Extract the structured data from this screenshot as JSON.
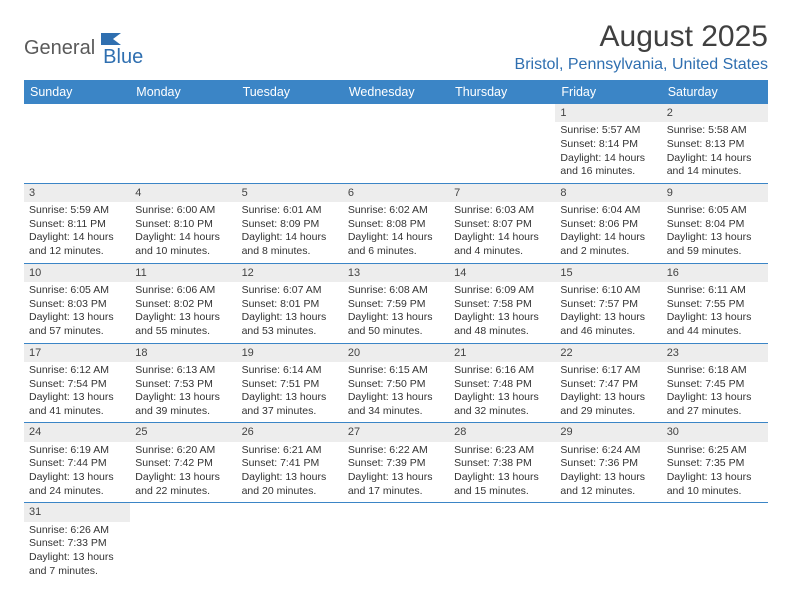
{
  "logo": {
    "part1": "General",
    "part2": "Blue"
  },
  "title": "August 2025",
  "location": "Bristol, Pennsylvania, United States",
  "colors": {
    "header_bg": "#3b85c6",
    "header_text": "#ffffff",
    "daynum_bg": "#ededed",
    "accent": "#2f6fb0",
    "text": "#333333"
  },
  "day_headers": [
    "Sunday",
    "Monday",
    "Tuesday",
    "Wednesday",
    "Thursday",
    "Friday",
    "Saturday"
  ],
  "weeks": [
    [
      null,
      null,
      null,
      null,
      null,
      {
        "n": "1",
        "sr": "5:57 AM",
        "ss": "8:14 PM",
        "dl": "14 hours and 16 minutes."
      },
      {
        "n": "2",
        "sr": "5:58 AM",
        "ss": "8:13 PM",
        "dl": "14 hours and 14 minutes."
      }
    ],
    [
      {
        "n": "3",
        "sr": "5:59 AM",
        "ss": "8:11 PM",
        "dl": "14 hours and 12 minutes."
      },
      {
        "n": "4",
        "sr": "6:00 AM",
        "ss": "8:10 PM",
        "dl": "14 hours and 10 minutes."
      },
      {
        "n": "5",
        "sr": "6:01 AM",
        "ss": "8:09 PM",
        "dl": "14 hours and 8 minutes."
      },
      {
        "n": "6",
        "sr": "6:02 AM",
        "ss": "8:08 PM",
        "dl": "14 hours and 6 minutes."
      },
      {
        "n": "7",
        "sr": "6:03 AM",
        "ss": "8:07 PM",
        "dl": "14 hours and 4 minutes."
      },
      {
        "n": "8",
        "sr": "6:04 AM",
        "ss": "8:06 PM",
        "dl": "14 hours and 2 minutes."
      },
      {
        "n": "9",
        "sr": "6:05 AM",
        "ss": "8:04 PM",
        "dl": "13 hours and 59 minutes."
      }
    ],
    [
      {
        "n": "10",
        "sr": "6:05 AM",
        "ss": "8:03 PM",
        "dl": "13 hours and 57 minutes."
      },
      {
        "n": "11",
        "sr": "6:06 AM",
        "ss": "8:02 PM",
        "dl": "13 hours and 55 minutes."
      },
      {
        "n": "12",
        "sr": "6:07 AM",
        "ss": "8:01 PM",
        "dl": "13 hours and 53 minutes."
      },
      {
        "n": "13",
        "sr": "6:08 AM",
        "ss": "7:59 PM",
        "dl": "13 hours and 50 minutes."
      },
      {
        "n": "14",
        "sr": "6:09 AM",
        "ss": "7:58 PM",
        "dl": "13 hours and 48 minutes."
      },
      {
        "n": "15",
        "sr": "6:10 AM",
        "ss": "7:57 PM",
        "dl": "13 hours and 46 minutes."
      },
      {
        "n": "16",
        "sr": "6:11 AM",
        "ss": "7:55 PM",
        "dl": "13 hours and 44 minutes."
      }
    ],
    [
      {
        "n": "17",
        "sr": "6:12 AM",
        "ss": "7:54 PM",
        "dl": "13 hours and 41 minutes."
      },
      {
        "n": "18",
        "sr": "6:13 AM",
        "ss": "7:53 PM",
        "dl": "13 hours and 39 minutes."
      },
      {
        "n": "19",
        "sr": "6:14 AM",
        "ss": "7:51 PM",
        "dl": "13 hours and 37 minutes."
      },
      {
        "n": "20",
        "sr": "6:15 AM",
        "ss": "7:50 PM",
        "dl": "13 hours and 34 minutes."
      },
      {
        "n": "21",
        "sr": "6:16 AM",
        "ss": "7:48 PM",
        "dl": "13 hours and 32 minutes."
      },
      {
        "n": "22",
        "sr": "6:17 AM",
        "ss": "7:47 PM",
        "dl": "13 hours and 29 minutes."
      },
      {
        "n": "23",
        "sr": "6:18 AM",
        "ss": "7:45 PM",
        "dl": "13 hours and 27 minutes."
      }
    ],
    [
      {
        "n": "24",
        "sr": "6:19 AM",
        "ss": "7:44 PM",
        "dl": "13 hours and 24 minutes."
      },
      {
        "n": "25",
        "sr": "6:20 AM",
        "ss": "7:42 PM",
        "dl": "13 hours and 22 minutes."
      },
      {
        "n": "26",
        "sr": "6:21 AM",
        "ss": "7:41 PM",
        "dl": "13 hours and 20 minutes."
      },
      {
        "n": "27",
        "sr": "6:22 AM",
        "ss": "7:39 PM",
        "dl": "13 hours and 17 minutes."
      },
      {
        "n": "28",
        "sr": "6:23 AM",
        "ss": "7:38 PM",
        "dl": "13 hours and 15 minutes."
      },
      {
        "n": "29",
        "sr": "6:24 AM",
        "ss": "7:36 PM",
        "dl": "13 hours and 12 minutes."
      },
      {
        "n": "30",
        "sr": "6:25 AM",
        "ss": "7:35 PM",
        "dl": "13 hours and 10 minutes."
      }
    ],
    [
      {
        "n": "31",
        "sr": "6:26 AM",
        "ss": "7:33 PM",
        "dl": "13 hours and 7 minutes."
      },
      null,
      null,
      null,
      null,
      null,
      null
    ]
  ],
  "labels": {
    "sunrise": "Sunrise:",
    "sunset": "Sunset:",
    "daylight": "Daylight:"
  }
}
